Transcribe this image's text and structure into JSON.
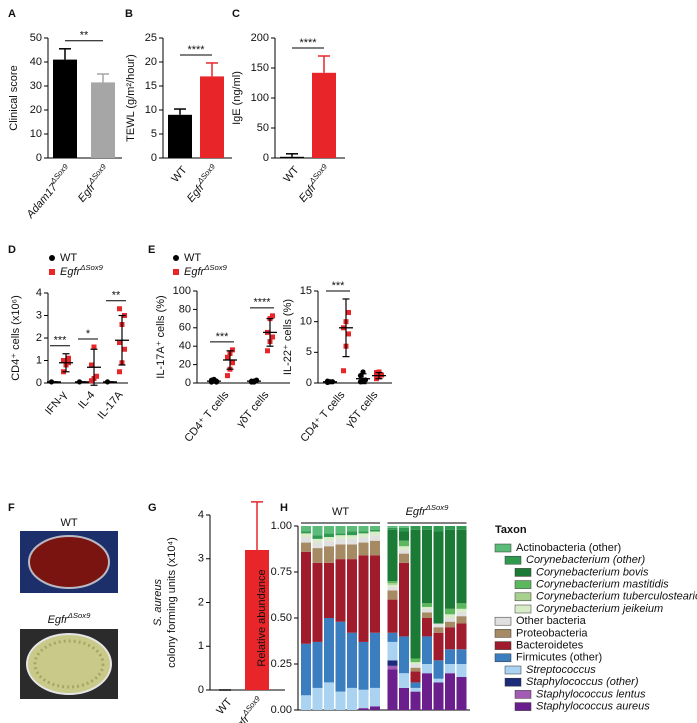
{
  "chart_data": [
    {
      "type": "bar",
      "panel": "A",
      "ylabel": "Clinical score",
      "categories": [
        "Adam17",
        "Egfr"
      ],
      "category_sup": [
        "ΔSox9",
        "ΔSox9"
      ],
      "values": [
        41,
        31.5
      ],
      "errors": [
        4.5,
        3.5
      ],
      "colors": [
        "#000000",
        "#a6a6a6"
      ],
      "ylim": [
        0,
        50
      ],
      "yticks": [
        0,
        10,
        20,
        30,
        40,
        50
      ],
      "significance": [
        {
          "label": "**"
        }
      ]
    },
    {
      "type": "bar",
      "panel": "B",
      "ylabel": "TEWL (g/m²/hour)",
      "categories": [
        "WT",
        "Egfr"
      ],
      "category_sup": [
        null,
        "ΔSox9"
      ],
      "values": [
        9,
        17
      ],
      "errors": [
        1.2,
        2.8
      ],
      "colors": [
        "#000000",
        "#e8262a"
      ],
      "ylim": [
        0,
        25
      ],
      "yticks": [
        0,
        5,
        10,
        15,
        20,
        25
      ],
      "significance": [
        {
          "label": "****"
        }
      ]
    },
    {
      "type": "bar",
      "panel": "C",
      "ylabel": "IgE (ng/ml)",
      "categories": [
        "WT",
        "Egfr"
      ],
      "category_sup": [
        null,
        "ΔSox9"
      ],
      "values": [
        2,
        142
      ],
      "errors": [
        5,
        28
      ],
      "colors": [
        "#000000",
        "#e8262a"
      ],
      "ylim": [
        0,
        200
      ],
      "yticks": [
        0,
        50,
        100,
        150,
        200
      ],
      "significance": [
        {
          "label": "****"
        }
      ]
    },
    {
      "type": "dot",
      "panel": "D",
      "ylabel": "CD4⁺ cells (x10⁶)",
      "categories": [
        "IFN-γ",
        "IL-4",
        "IL-17A"
      ],
      "ylim": [
        0,
        4
      ],
      "yticks": [
        0,
        1,
        2,
        3,
        4
      ],
      "legend": true,
      "series": [
        {
          "name": "WT",
          "color": "#000000",
          "marker": "circle",
          "values": [
            [
              0.05
            ],
            [
              0.05
            ],
            [
              0.05
            ]
          ],
          "mean": [
            0.05,
            0.05,
            0.05
          ],
          "sd": [
            0,
            0,
            0
          ]
        },
        {
          "name": "Egfr",
          "name_sup": "ΔSox9",
          "color": "#e8262a",
          "marker": "square",
          "values": [
            [
              0.5,
              0.8,
              0.9,
              1.0,
              1.0,
              1.1
            ],
            [
              0.1,
              0.2,
              0.3,
              0.8,
              1.6
            ],
            [
              0.5,
              0.9,
              1.5,
              1.8,
              2.6,
              3.0,
              3.3
            ]
          ],
          "mean": [
            0.9,
            0.7,
            1.9
          ],
          "sd": [
            0.4,
            0.8,
            1.1
          ]
        }
      ],
      "significance": [
        {
          "label": "***",
          "category": 0
        },
        {
          "label": "*",
          "category": 1
        },
        {
          "label": "**",
          "category": 2
        }
      ]
    },
    {
      "type": "dot",
      "panel": "E",
      "ylabel": "IL-17A⁺ cells (%)",
      "categories": [
        "CD4⁺ T cells",
        "γδT cells"
      ],
      "ylim": [
        0,
        100
      ],
      "yticks": [
        0,
        20,
        40,
        60,
        80,
        100
      ],
      "legend": true,
      "series": [
        {
          "name": "WT",
          "color": "#000000",
          "marker": "circle",
          "values": [
            [
              1,
              2,
              2,
              3,
              4,
              1
            ],
            [
              1,
              2,
              3,
              2,
              1,
              3
            ]
          ],
          "mean": [
            2,
            2
          ],
          "sd": [
            1,
            1
          ]
        },
        {
          "name": "Egfr",
          "name_sup": "ΔSox9",
          "color": "#e8262a",
          "marker": "square",
          "values": [
            [
              8,
              15,
              22,
              28,
              32,
              36
            ],
            [
              35,
              45,
              50,
              55,
              70,
              73
            ]
          ],
          "mean": [
            25,
            55
          ],
          "sd": [
            10,
            15
          ]
        }
      ],
      "significance": [
        {
          "label": "***",
          "category": 0
        },
        {
          "label": "****",
          "category": 1
        }
      ]
    },
    {
      "type": "dot",
      "ylabel": "IL-22⁺ cells (%)",
      "categories": [
        "CD4⁺ T cells",
        "γδT cells"
      ],
      "ylim": [
        0,
        15
      ],
      "yticks": [
        0,
        5,
        10,
        15
      ],
      "legend": false,
      "series": [
        {
          "color": "#000000",
          "marker": "circle",
          "values": [
            [
              0.1,
              0.2,
              0.2,
              0.3
            ],
            [
              0.2,
              0.3,
              0.5,
              1.2,
              1.8
            ]
          ],
          "mean": [
            0.2,
            0.7
          ],
          "sd": [
            0.1,
            0.8
          ]
        },
        {
          "color": "#e8262a",
          "marker": "square",
          "values": [
            [
              2,
              6,
              8,
              9,
              10,
              11.5
            ],
            [
              0.7,
              1.0,
              1.3,
              1.7,
              1.8
            ]
          ],
          "mean": [
            9,
            1.2
          ],
          "sd": [
            4.7,
            0.5
          ]
        }
      ],
      "significance": [
        {
          "label": "***",
          "category": 0
        }
      ]
    },
    {
      "type": "bar",
      "panel": "G",
      "ylabel": [
        "S. aureus",
        "colony forming units (x10⁴)"
      ],
      "categories": [
        "WT",
        "Egfr"
      ],
      "category_sup": [
        null,
        "ΔSox9"
      ],
      "values": [
        0,
        3.2
      ],
      "errors": [
        0,
        1.1
      ],
      "colors": [
        "#000000",
        "#e8262a"
      ],
      "ylim": [
        0,
        4
      ],
      "yticks": [
        0,
        1,
        2,
        3,
        4
      ]
    },
    {
      "type": "stacked",
      "panel": "H",
      "ylabel": "Relative abundance",
      "categories": [
        null,
        null,
        null,
        null,
        null,
        null,
        null,
        null,
        null,
        null,
        null,
        null,
        null,
        null
      ],
      "groups": [
        {
          "label": "WT",
          "start": 0,
          "end": 6
        },
        {
          "label": "Egfr",
          "sup": "ΔSox9",
          "start": 7,
          "end": 13
        }
      ],
      "ylim": [
        0,
        1
      ],
      "yticks": [
        {
          "value": 0,
          "label": "0.00"
        },
        {
          "value": 0.25,
          "label": "0.25"
        },
        {
          "value": 0.5,
          "label": "0.50"
        },
        {
          "value": 0.75,
          "label": "0.75"
        },
        {
          "value": 1,
          "label": "1.00"
        }
      ],
      "legend_title": "Taxon",
      "series": [
        {
          "name": "Actinobacteria (other)",
          "color": "#5dbb7a",
          "level": 0,
          "italic": false,
          "values": [
            0.03,
            0.05,
            0.04,
            0.04,
            0.03,
            0.03,
            0.02,
            0.01,
            0.01,
            0,
            0,
            0,
            0,
            0
          ]
        },
        {
          "name": "Corynebacterium (other)",
          "color": "#2f9a4f",
          "level": 1,
          "italic": true,
          "values": [
            0.01,
            0.02,
            0.02,
            0.01,
            0.02,
            0.01,
            0.01,
            0.01,
            0.02,
            0.02,
            0.02,
            0.03,
            0.02,
            0.02
          ]
        },
        {
          "name": "Corynebacterium bovis",
          "color": "#1b7a35",
          "level": 2,
          "italic": true,
          "values": [
            0,
            0,
            0,
            0,
            0,
            0,
            0,
            0.28,
            0.05,
            0.7,
            0.4,
            0.5,
            0.43,
            0.4
          ]
        },
        {
          "name": "Corynebacterium mastitidis",
          "color": "#5cb85c",
          "level": 2,
          "italic": true,
          "values": [
            0,
            0,
            0,
            0,
            0,
            0,
            0,
            0.01,
            0.03,
            0.02,
            0.02,
            0,
            0.03,
            0.03
          ]
        },
        {
          "name": "Corynebacterium tuberculostearicum",
          "color": "#a9d18e",
          "level": 2,
          "italic": true,
          "values": [
            0,
            0,
            0,
            0,
            0,
            0,
            0,
            0.01,
            0,
            0,
            0,
            0,
            0,
            0
          ]
        },
        {
          "name": "Corynebacterium jeikeium",
          "color": "#d9ecc8",
          "level": 2,
          "italic": true,
          "values": [
            0.02,
            0.02,
            0.02,
            0.02,
            0.02,
            0.02,
            0.02,
            0.01,
            0.02,
            0.01,
            0.01,
            0,
            0.02,
            0.02
          ]
        },
        {
          "name": "Other bacteria",
          "color": "#e0e0e0",
          "level": 0,
          "italic": false,
          "values": [
            0.03,
            0.03,
            0.03,
            0.03,
            0.03,
            0.03,
            0.03,
            0.02,
            0.02,
            0.02,
            0.02,
            0.02,
            0.02,
            0.02
          ]
        },
        {
          "name": "Proteobacteria",
          "color": "#a68a64",
          "level": 0,
          "italic": false,
          "values": [
            0.05,
            0.08,
            0.09,
            0.08,
            0.08,
            0.07,
            0.08,
            0.05,
            0.05,
            0.02,
            0.03,
            0.03,
            0.03,
            0.04
          ]
        },
        {
          "name": "Bacteroidetes",
          "color": "#a01b2c",
          "level": 0,
          "italic": false,
          "values": [
            0.5,
            0.43,
            0.3,
            0.34,
            0.4,
            0.47,
            0.42,
            0.18,
            0.4,
            0.06,
            0.1,
            0.15,
            0.12,
            0.14
          ]
        },
        {
          "name": "Firmicutes (other)",
          "color": "#3b7ebf",
          "level": 0,
          "italic": false,
          "values": [
            0.28,
            0.25,
            0.35,
            0.38,
            0.3,
            0.26,
            0.3,
            0.05,
            0.2,
            0.03,
            0.15,
            0.1,
            0.08,
            0.08
          ]
        },
        {
          "name": "Streptococcus",
          "color": "#a9d3f0",
          "level": 1,
          "italic": true,
          "values": [
            0.08,
            0.12,
            0.15,
            0.1,
            0.12,
            0.1,
            0.1,
            0.1,
            0.08,
            0.02,
            0.05,
            0.02,
            0.05,
            0.07
          ]
        },
        {
          "name": "Staphylococcus (other)",
          "color": "#1c2a7a",
          "level": 1,
          "italic": true,
          "values": [
            0,
            0,
            0,
            0,
            0,
            0,
            0,
            0.03,
            0,
            0,
            0,
            0,
            0,
            0
          ]
        },
        {
          "name": "Staphylococcus lentus",
          "color": "#a35cb5",
          "level": 2,
          "italic": true,
          "values": [
            0,
            0,
            0,
            0,
            0,
            0,
            0,
            0.02,
            0,
            0,
            0,
            0,
            0,
            0
          ]
        },
        {
          "name": "Staphylococcus aureus",
          "color": "#6a1f8c",
          "level": 2,
          "italic": true,
          "values": [
            0,
            0,
            0,
            0,
            0,
            0.01,
            0.02,
            0.22,
            0.12,
            0.1,
            0.2,
            0.15,
            0.2,
            0.18
          ]
        }
      ]
    }
  ],
  "photo_panel": {
    "panel": "F",
    "labels": [
      {
        "text": "WT"
      },
      {
        "text": "Egfr",
        "sup": "ΔSox9"
      }
    ]
  }
}
